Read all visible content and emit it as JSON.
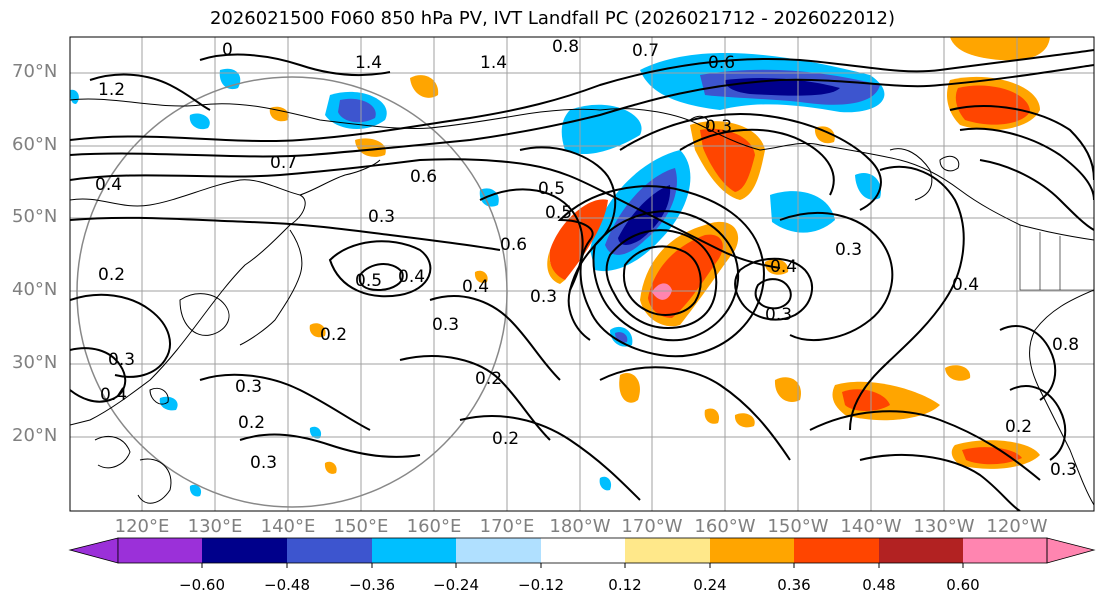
{
  "title": "2026021500 F060 850 hPa PV, IVT Landfall PC (2026021712 - 2026022012)",
  "lat_labels": [
    "70°N",
    "60°N",
    "50°N",
    "40°N",
    "30°N",
    "20°N"
  ],
  "lon_labels": [
    "120°E",
    "130°E",
    "140°E",
    "150°E",
    "160°E",
    "170°E",
    "180°W",
    "170°W",
    "160°W",
    "150°W",
    "140°W",
    "130°W",
    "120°W"
  ],
  "colorbar": {
    "colors": [
      "#9b30d9",
      "#00008b",
      "#3d55cf",
      "#00bfff",
      "#b0e0ff",
      "#ffffff",
      "#ffe88a",
      "#ffa500",
      "#ff4500",
      "#b22222",
      "#ff85b0"
    ],
    "tick_labels": [
      "−0.60",
      "−0.48",
      "−0.36",
      "−0.24",
      "−0.12",
      "0.12",
      "0.24",
      "0.36",
      "0.48",
      "0.60"
    ]
  },
  "contour_labels": [
    "0",
    "1.4",
    "0.8",
    "0.7",
    "0.6",
    "1.2",
    "1.4",
    "0.7",
    "0.4",
    "0.6",
    "0.3",
    "0.5",
    "0.4",
    "0.5",
    "0.4",
    "0.6",
    "0.5",
    "0.3",
    "0.2",
    "0.3",
    "0.4",
    "0.3",
    "0.2",
    "0.2",
    "0.3",
    "0.2",
    "0.2",
    "0.3",
    "0.4",
    "0.3",
    "0.4",
    "0.3",
    "0.8",
    "0.2",
    "0.3",
    "0.3"
  ]
}
